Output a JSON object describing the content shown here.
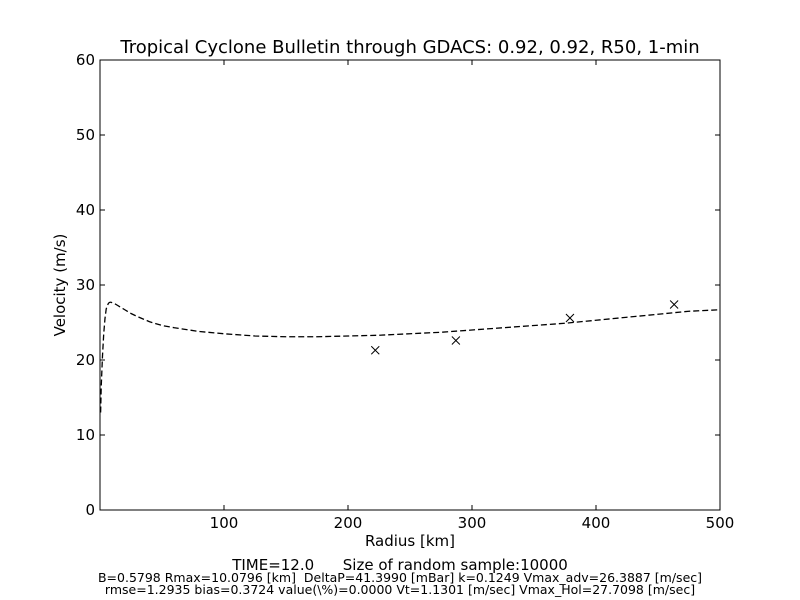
{
  "chart_data": {
    "type": "line",
    "title": "Tropical Cyclone Bulletin through GDACS: 0.92, 0.92, R50, 1-min",
    "xlabel": "Radius [km]",
    "ylabel": "Velocity (m/s)",
    "xlim": [
      0,
      500
    ],
    "ylim": [
      0,
      60
    ],
    "xticks": [
      100,
      200,
      300,
      400,
      500
    ],
    "yticks": [
      0,
      10,
      20,
      30,
      40,
      50,
      60
    ],
    "grid": false,
    "legend": "none",
    "series": [
      {
        "style": "dashed",
        "color": "#000000",
        "marker": "none",
        "x": [
          0.5,
          1,
          2,
          3,
          4,
          5,
          6,
          7,
          8,
          9,
          10,
          12,
          14,
          17,
          20,
          25,
          30,
          40,
          50,
          60,
          80,
          100,
          125,
          150,
          175,
          200,
          225,
          250,
          275,
          300,
          325,
          350,
          375,
          400,
          425,
          450,
          475,
          500
        ],
        "y": [
          13.0,
          16.5,
          20.5,
          23.5,
          25.5,
          26.8,
          27.3,
          27.6,
          27.7,
          27.7,
          27.6,
          27.5,
          27.3,
          27.0,
          26.7,
          26.2,
          25.8,
          25.1,
          24.6,
          24.3,
          23.8,
          23.5,
          23.2,
          23.1,
          23.1,
          23.2,
          23.3,
          23.5,
          23.7,
          24.0,
          24.3,
          24.6,
          24.9,
          25.3,
          25.7,
          26.1,
          26.5,
          26.7
        ]
      },
      {
        "style": "markers",
        "color": "#000000",
        "marker": "x",
        "x": [
          222,
          287,
          379,
          463
        ],
        "y": [
          21.3,
          22.6,
          25.6,
          27.4
        ]
      }
    ]
  },
  "footer": {
    "line1": "TIME=12.0      Size of random sample:10000",
    "line2": "B=0.5798 Rmax=10.0796 [km]  DeltaP=41.3990 [mBar] k=0.1249 Vmax_adv=26.3887 [m/sec]",
    "line3": "rmse=1.2935 bias=0.3724 value(\\%)=0.0000 Vt=1.1301 [m/sec] Vmax_Hol=27.7098 [m/sec]"
  }
}
